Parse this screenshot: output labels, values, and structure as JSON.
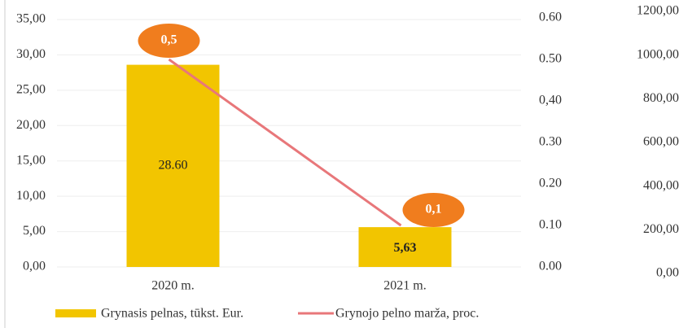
{
  "chart_data": {
    "type": "bar",
    "categories": [
      "2020 m.",
      "2021 m."
    ],
    "series": [
      {
        "name": "Grynasis pelnas, tūkst. Eur.",
        "type": "bar",
        "color": "#f2c500",
        "values": [
          28.6,
          5.63
        ],
        "value_labels": [
          "28.60",
          "5,63"
        ]
      },
      {
        "name": "Grynojo pelno marža, proc.",
        "type": "line",
        "axis": "y2",
        "color": "#e8777a",
        "values": [
          0.5,
          0.1
        ],
        "value_labels": [
          "0,5",
          "0,1"
        ],
        "label_color": "#f07d1e"
      }
    ],
    "ylim": [
      0,
      35
    ],
    "yticks": [
      {
        "value": 0,
        "label": "0,00"
      },
      {
        "value": 5,
        "label": "5,00"
      },
      {
        "value": 10,
        "label": "10,00"
      },
      {
        "value": 15,
        "label": "15,00"
      },
      {
        "value": 20,
        "label": "20,00"
      },
      {
        "value": 25,
        "label": "25,00"
      },
      {
        "value": 30,
        "label": "30,00"
      },
      {
        "value": 35,
        "label": "35,00"
      }
    ],
    "y2lim": [
      0,
      0.6
    ],
    "y2ticks": [
      {
        "value": 0,
        "label": "0.00"
      },
      {
        "value": 0.1,
        "label": "0.10"
      },
      {
        "value": 0.2,
        "label": "0.20"
      },
      {
        "value": 0.3,
        "label": "0.30"
      },
      {
        "value": 0.4,
        "label": "0,40"
      },
      {
        "value": 0.5,
        "label": "0.50"
      },
      {
        "value": 0.6,
        "label": "0.60"
      }
    ],
    "y3lim": [
      0,
      1200
    ],
    "y3ticks": [
      {
        "value": 0,
        "label": "0,00"
      },
      {
        "value": 200,
        "label": "200,00"
      },
      {
        "value": 400,
        "label": "400,00"
      },
      {
        "value": 600,
        "label": "600,00"
      },
      {
        "value": 800,
        "label": "800,00"
      },
      {
        "value": 1000,
        "label": "1000,00"
      },
      {
        "value": 1200,
        "label": "1200,00"
      }
    ],
    "grid": true
  }
}
